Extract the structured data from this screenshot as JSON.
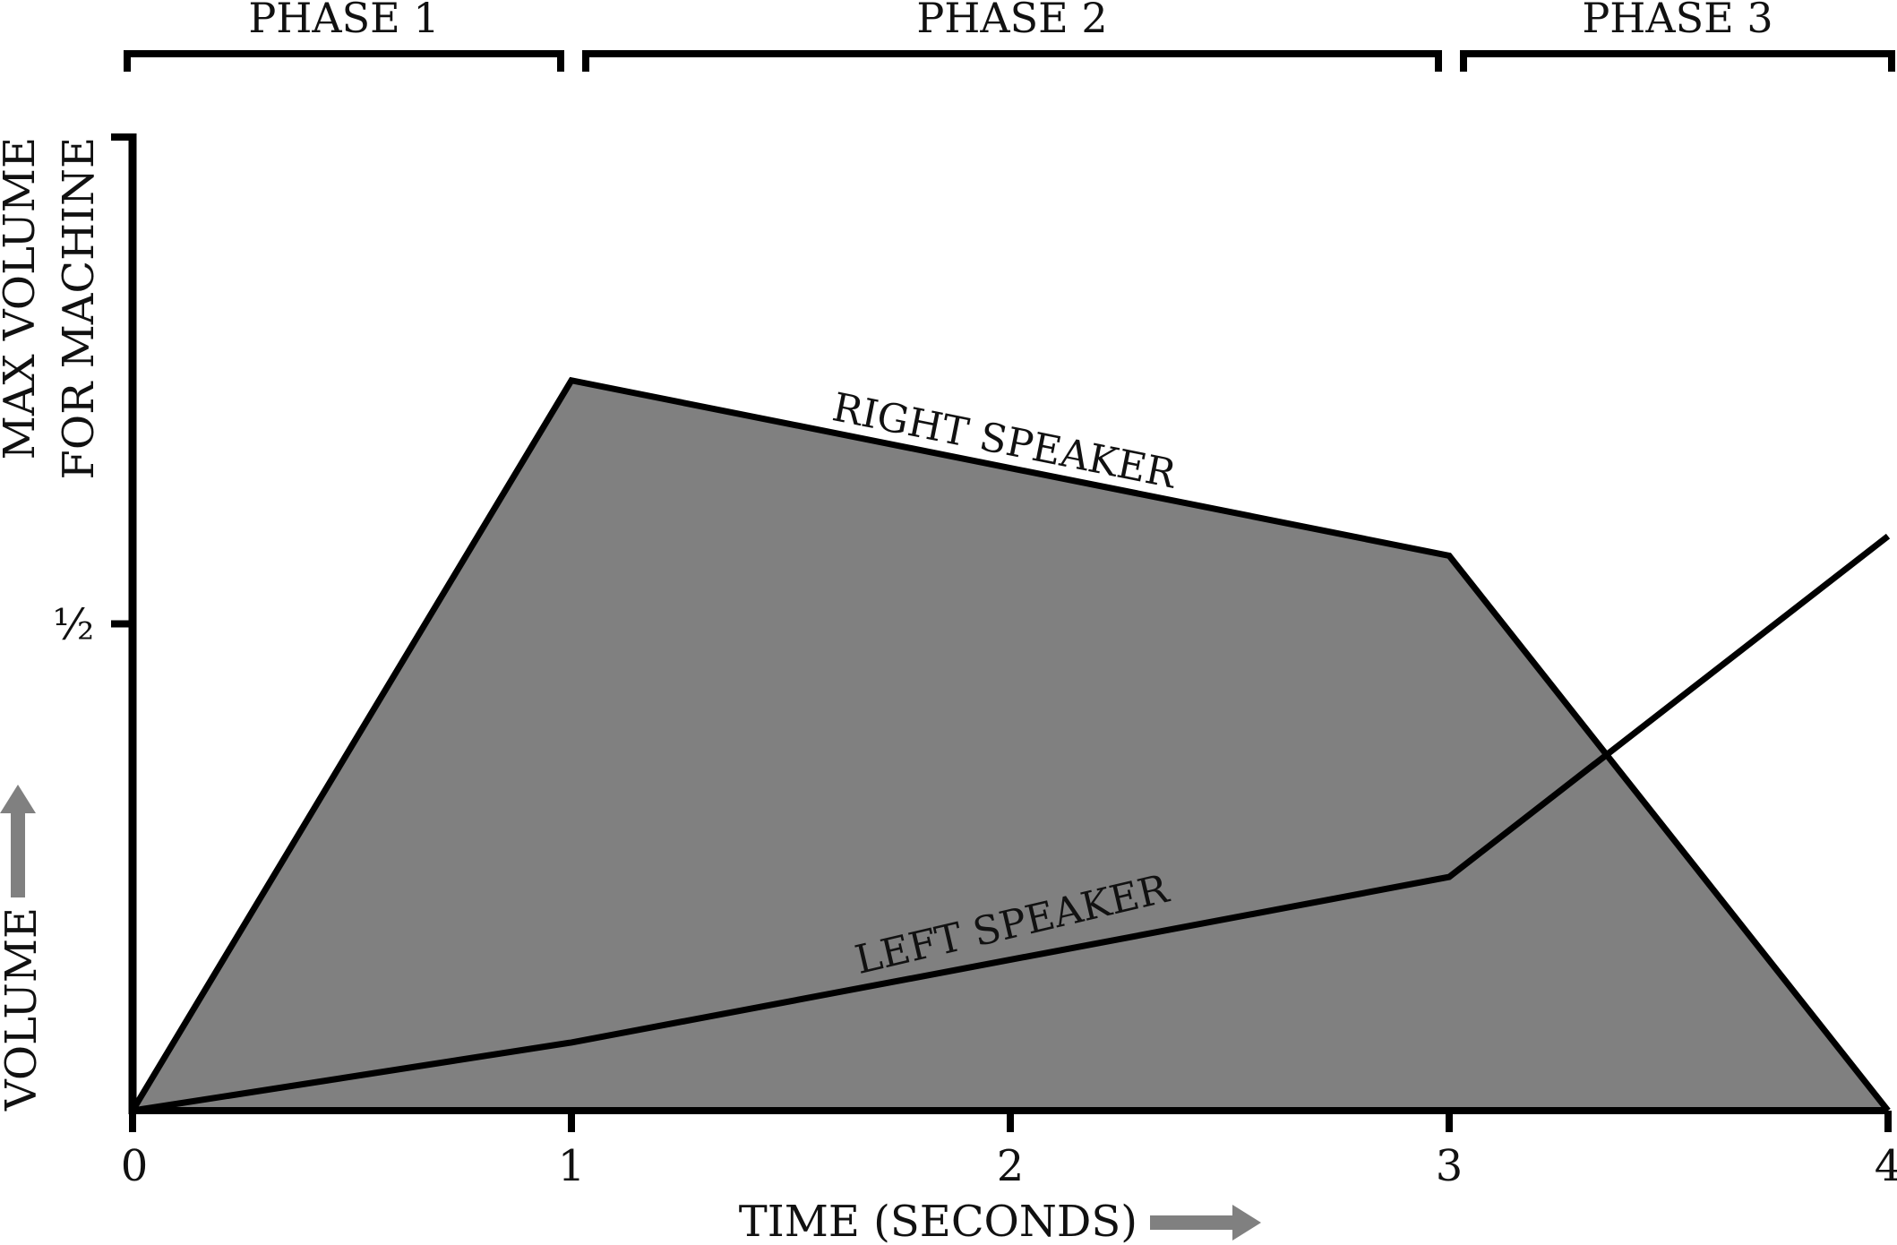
{
  "chart_data": {
    "type": "area",
    "x": [
      0,
      1,
      3,
      4
    ],
    "series": [
      {
        "name": "RIGHT SPEAKER",
        "values": [
          0,
          0.75,
          0.57,
          0
        ],
        "filled": true
      },
      {
        "name": "LEFT SPEAKER",
        "values": [
          0,
          0.07,
          0.24,
          0.59
        ],
        "filled": false
      }
    ],
    "xlabel": "TIME (SECONDS)",
    "ylabel": "VOLUME",
    "xlim": [
      0,
      4
    ],
    "ylim": [
      0,
      1
    ],
    "x_ticks": [
      {
        "value": 0,
        "label": "0"
      },
      {
        "value": 1,
        "label": "1"
      },
      {
        "value": 2,
        "label": "2"
      },
      {
        "value": 3,
        "label": "3"
      },
      {
        "value": 4,
        "label": "4"
      }
    ],
    "y_ticks": [
      {
        "value": 0.5,
        "label": "½"
      },
      {
        "value": 1,
        "label": ""
      }
    ],
    "y_max_label": [
      "MAX VOLUME",
      "FOR MACHINE"
    ],
    "phases": [
      {
        "label": "PHASE 1",
        "start": 0,
        "end": 1
      },
      {
        "label": "PHASE 2",
        "start": 1,
        "end": 3
      },
      {
        "label": "PHASE 3",
        "start": 3,
        "end": 4
      }
    ],
    "grid": false,
    "legend": "none",
    "colors": {
      "fill": "#808080",
      "line": "#000000",
      "arrow": "#808080"
    }
  }
}
